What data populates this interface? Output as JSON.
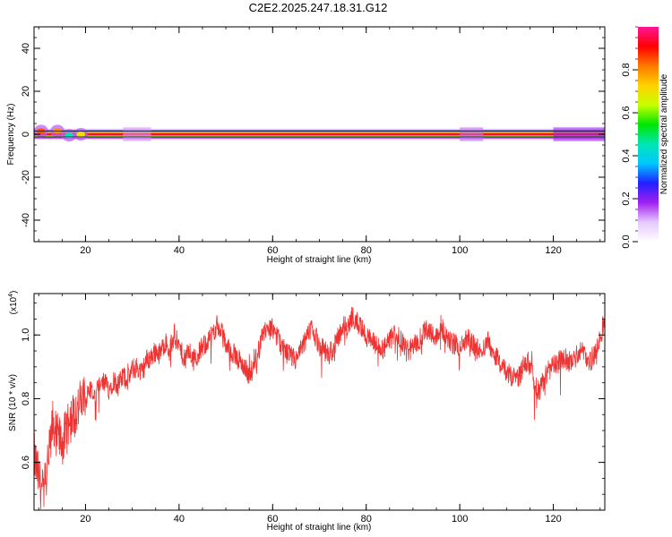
{
  "figure": {
    "title": "C2E2.2025.247.18.31.G12"
  },
  "chart_data": [
    {
      "type": "heatmap",
      "xlabel": "Height of straight line (km)",
      "ylabel": "Frequency (Hz)",
      "xlim": [
        9,
        131
      ],
      "ylim": [
        -50,
        50
      ],
      "xticks": [
        20,
        40,
        60,
        80,
        100,
        120
      ],
      "yticks": [
        -40,
        -20,
        0,
        20,
        40
      ],
      "band": {
        "center_hz": 0,
        "core_halfwidth_hz": 0.8,
        "core_amplitude": 0.95,
        "features": [
          {
            "x": 10.5,
            "y": 1.5,
            "amplitude": 0.85
          },
          {
            "x": 14,
            "y": 1.5,
            "amplitude": 0.8
          },
          {
            "x": 16.5,
            "y": -0.5,
            "amplitude": 0.45
          },
          {
            "x": 19,
            "y": 0,
            "amplitude": 0.7
          }
        ]
      },
      "colorbar": {
        "label": "Normalized spectral amplitude",
        "range": [
          0,
          1
        ],
        "ticks": [
          0.0,
          0.2,
          0.4,
          0.6,
          0.8
        ],
        "tick_labels": [
          "0.0",
          "0.2",
          "0.4",
          "0.6",
          "0.8"
        ],
        "colormap": [
          "#ffffff",
          "#e6c8ff",
          "#a020f0",
          "#2020ff",
          "#00c8ff",
          "#00e6b4",
          "#00e600",
          "#c8ff00",
          "#ffd200",
          "#ff7800",
          "#ff0000",
          "#ff1496"
        ]
      }
    },
    {
      "type": "line",
      "xlabel": "Height of straight line (km)",
      "ylabel": "SNR (10 * v/v)",
      "y_multiplier_label": "(x10",
      "y_multiplier_exponent": "4",
      "y_multiplier_close": ")",
      "xlim": [
        9,
        131
      ],
      "ylim": [
        0.45,
        1.13
      ],
      "xticks": [
        20,
        40,
        60,
        80,
        100,
        120
      ],
      "yticks": [
        0.6,
        0.8,
        1.0
      ],
      "ytick_labels": [
        "0.6",
        "0.8",
        "1.0"
      ],
      "color": "#ee3333",
      "x": [
        9,
        10,
        11,
        12,
        13,
        14,
        15,
        16,
        17,
        18,
        19,
        20,
        21,
        22,
        23,
        24,
        25,
        26,
        27,
        28,
        29,
        30,
        31,
        32,
        33,
        34,
        35,
        36,
        37,
        38,
        39,
        40,
        41,
        42,
        43,
        44,
        45,
        46,
        47,
        48,
        49,
        50,
        51,
        52,
        53,
        54,
        55,
        56,
        57,
        58,
        59,
        60,
        61,
        62,
        63,
        64,
        65,
        66,
        67,
        68,
        69,
        70,
        71,
        72,
        73,
        74,
        75,
        76,
        77,
        78,
        79,
        80,
        81,
        82,
        83,
        84,
        85,
        86,
        87,
        88,
        89,
        90,
        91,
        92,
        93,
        94,
        95,
        96,
        97,
        98,
        99,
        100,
        101,
        102,
        103,
        104,
        105,
        106,
        107,
        108,
        109,
        110,
        111,
        112,
        113,
        114,
        115,
        116,
        117,
        118,
        119,
        120,
        121,
        122,
        123,
        124,
        125,
        126,
        127,
        128,
        129,
        130,
        131
      ],
      "values": [
        0.62,
        0.55,
        0.5,
        0.6,
        0.72,
        0.68,
        0.66,
        0.7,
        0.74,
        0.76,
        0.79,
        0.8,
        0.83,
        0.81,
        0.84,
        0.85,
        0.83,
        0.86,
        0.84,
        0.87,
        0.86,
        0.89,
        0.9,
        0.88,
        0.92,
        0.93,
        0.95,
        0.94,
        0.98,
        0.95,
        1.0,
        0.96,
        0.93,
        0.95,
        0.92,
        0.94,
        0.96,
        0.98,
        1.0,
        1.03,
        1.01,
        0.97,
        0.95,
        0.93,
        0.92,
        0.9,
        0.87,
        0.9,
        0.95,
        1.0,
        1.03,
        1.02,
        0.99,
        0.96,
        0.94,
        0.93,
        0.92,
        0.95,
        0.98,
        1.02,
        1.0,
        0.97,
        0.95,
        0.94,
        0.96,
        0.99,
        1.03,
        1.02,
        1.06,
        1.04,
        1.02,
        1.0,
        0.98,
        0.97,
        0.95,
        0.96,
        0.98,
        1.0,
        0.99,
        0.97,
        0.95,
        0.96,
        0.98,
        1.0,
        1.02,
        1.01,
        0.99,
        1.03,
        1.0,
        0.98,
        0.97,
        0.96,
        0.98,
        0.99,
        0.97,
        0.95,
        0.96,
        0.98,
        0.95,
        0.93,
        0.9,
        0.88,
        0.87,
        0.86,
        0.88,
        0.92,
        0.9,
        0.85,
        0.82,
        0.86,
        0.89,
        0.9,
        0.91,
        0.93,
        0.92,
        0.91,
        0.94,
        0.95,
        0.93,
        0.92,
        0.94,
        0.99,
        1.05
      ],
      "noise_amplitude": 0.035
    }
  ]
}
